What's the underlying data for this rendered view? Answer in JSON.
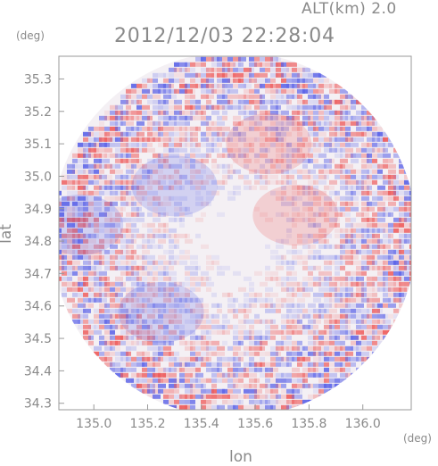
{
  "header": {
    "altitude": "ALT(km) 2.0",
    "timestamp": "2012/12/03 22:28:04"
  },
  "axes": {
    "x_unit": "(deg)",
    "y_unit": "(deg)",
    "x_label": "lon",
    "y_label": "lat"
  },
  "colors": {
    "negative": "#5b63e8",
    "positive": "#ee5a5a",
    "neutral": "#f4f0f4",
    "axis": "#9a9a9a"
  },
  "chart_data": {
    "type": "heatmap",
    "title": "2012/12/03 22:28:04",
    "xlabel": "lon",
    "ylabel": "lat",
    "xlim": [
      134.87,
      136.18
    ],
    "ylim": [
      34.28,
      35.37
    ],
    "x_ticks": [
      "135.0",
      "135.2",
      "135.4",
      "135.6",
      "135.8",
      "136.0"
    ],
    "y_ticks": [
      "35.3",
      "35.2",
      "35.1",
      "35.0",
      "34.9",
      "34.8",
      "34.7",
      "34.6",
      "34.5",
      "34.4",
      "34.3"
    ],
    "radar_center": [
      135.52,
      34.82
    ],
    "radar_coverage": "circular, full plot extent",
    "colorscale": "diverging blue-white-red",
    "regions": [
      {
        "description": "blue",
        "lon": 134.95,
        "lat": 34.85,
        "sign": -1
      },
      {
        "description": "blue",
        "lon": 135.25,
        "lat": 34.58,
        "sign": -1
      },
      {
        "description": "blue",
        "lon": 135.3,
        "lat": 34.97,
        "sign": -1
      },
      {
        "description": "red",
        "lon": 135.75,
        "lat": 34.88,
        "sign": 1
      },
      {
        "description": "red",
        "lon": 135.65,
        "lat": 35.1,
        "sign": 1
      }
    ]
  }
}
